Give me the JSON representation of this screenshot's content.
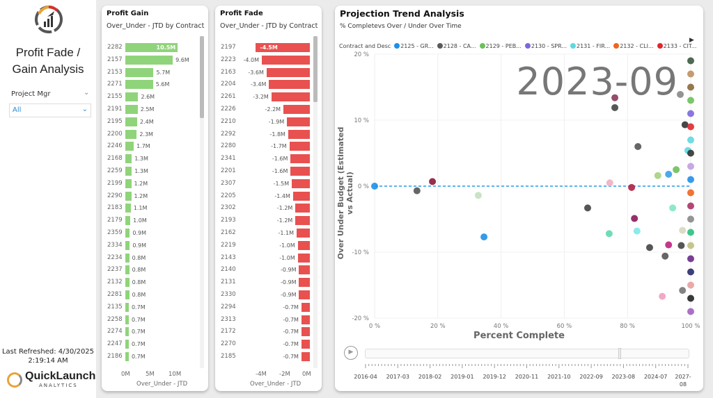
{
  "sidebar": {
    "title_line1": "Profit Fade /",
    "title_line2": "Gain Analysis",
    "filter_label": "Project Mgr",
    "filter_value": "All",
    "refreshed_line1": "Last Refreshed: 4/30/2025",
    "refreshed_line2": "2:19:14 AM",
    "brand_name": "QuickLaunch",
    "brand_sub": "ANALYTICS"
  },
  "gain": {
    "title": "Profit Gain",
    "subtitle": "Over_Under - JTD by Contract",
    "xlabel": "Over_Under - JTD",
    "ticks": [
      "0M",
      "5M",
      "10M"
    ],
    "color": "#8fd47a",
    "rows": [
      [
        "2282",
        10.5,
        "10.5M"
      ],
      [
        "2157",
        9.6,
        "9.6M"
      ],
      [
        "2153",
        5.7,
        "5.7M"
      ],
      [
        "2271",
        5.6,
        "5.6M"
      ],
      [
        "2155",
        2.6,
        "2.6M"
      ],
      [
        "2191",
        2.5,
        "2.5M"
      ],
      [
        "2195",
        2.4,
        "2.4M"
      ],
      [
        "2200",
        2.3,
        "2.3M"
      ],
      [
        "2246",
        1.7,
        "1.7M"
      ],
      [
        "2168",
        1.3,
        "1.3M"
      ],
      [
        "2259",
        1.3,
        "1.3M"
      ],
      [
        "2199",
        1.2,
        "1.2M"
      ],
      [
        "2290",
        1.2,
        "1.2M"
      ],
      [
        "2183",
        1.1,
        "1.1M"
      ],
      [
        "2179",
        1.0,
        "1.0M"
      ],
      [
        "2359",
        0.9,
        "0.9M"
      ],
      [
        "2334",
        0.9,
        "0.9M"
      ],
      [
        "2234",
        0.8,
        "0.8M"
      ],
      [
        "2237",
        0.8,
        "0.8M"
      ],
      [
        "2132",
        0.8,
        "0.8M"
      ],
      [
        "2281",
        0.8,
        "0.8M"
      ],
      [
        "2135",
        0.7,
        "0.7M"
      ],
      [
        "2258",
        0.7,
        "0.7M"
      ],
      [
        "2274",
        0.7,
        "0.7M"
      ],
      [
        "2247",
        0.7,
        "0.7M"
      ],
      [
        "2186",
        0.7,
        "0.7M"
      ]
    ]
  },
  "fade": {
    "title": "Profit Fade",
    "subtitle": "Over_Under - JTD by Contract",
    "xlabel": "Over_Under - JTD",
    "ticks": [
      "-4M",
      "-2M",
      "0M"
    ],
    "color": "#e8514f",
    "rows": [
      [
        "2197",
        -4.5,
        "-4.5M"
      ],
      [
        "2223",
        -4.0,
        "-4.0M"
      ],
      [
        "2163",
        -3.6,
        "-3.6M"
      ],
      [
        "2204",
        -3.4,
        "-3.4M"
      ],
      [
        "2261",
        -3.2,
        "-3.2M"
      ],
      [
        "2226",
        -2.2,
        "-2.2M"
      ],
      [
        "2210",
        -1.9,
        "-1.9M"
      ],
      [
        "2292",
        -1.8,
        "-1.8M"
      ],
      [
        "2280",
        -1.7,
        "-1.7M"
      ],
      [
        "2341",
        -1.6,
        "-1.6M"
      ],
      [
        "2201",
        -1.6,
        "-1.6M"
      ],
      [
        "2307",
        -1.5,
        "-1.5M"
      ],
      [
        "2205",
        -1.4,
        "-1.4M"
      ],
      [
        "2302",
        -1.2,
        "-1.2M"
      ],
      [
        "2193",
        -1.2,
        "-1.2M"
      ],
      [
        "2162",
        -1.1,
        "-1.1M"
      ],
      [
        "2219",
        -1.0,
        "-1.0M"
      ],
      [
        "2143",
        -1.0,
        "-1.0M"
      ],
      [
        "2140",
        -0.9,
        "-0.9M"
      ],
      [
        "2131",
        -0.9,
        "-0.9M"
      ],
      [
        "2330",
        -0.9,
        "-0.9M"
      ],
      [
        "2294",
        -0.7,
        "-0.7M"
      ],
      [
        "2313",
        -0.7,
        "-0.7M"
      ],
      [
        "2172",
        -0.7,
        "-0.7M"
      ],
      [
        "2270",
        -0.7,
        "-0.7M"
      ],
      [
        "2185",
        -0.7,
        "-0.7M"
      ]
    ]
  },
  "chart_data": {
    "type": "scatter",
    "title": "Projection Trend Analysis",
    "subtitle": "% Completevs Over / Under Over Time",
    "xlabel": "Percent Complete",
    "ylabel": "Over Under Budget (Estimated vs Actual)",
    "xlim": [
      0,
      100
    ],
    "ylim": [
      -20,
      20
    ],
    "xticks": [
      "0 %",
      "20 %",
      "40 %",
      "60 %",
      "80 %",
      "100 %"
    ],
    "yticks": [
      "20 %",
      "10 %",
      "0 %",
      "-10 %",
      "-20 %"
    ],
    "play_label": "2023-09",
    "legend_title": "Contract and Desc",
    "legend": [
      [
        "2125 - GR...",
        "#1e90e8"
      ],
      [
        "2128 - CA...",
        "#5a5a5a"
      ],
      [
        "2129 - PEB...",
        "#6cc05a"
      ],
      [
        "2130 - SPR...",
        "#7b68de"
      ],
      [
        "2131 - FIR...",
        "#5fd8e0"
      ],
      [
        "2132 - CLI...",
        "#f0641e"
      ],
      [
        "2133 - CIT...",
        "#e0282c"
      ]
    ],
    "points": [
      [
        0,
        0,
        "#1e90e8"
      ],
      [
        13.4,
        -0.7,
        "#555"
      ],
      [
        18.3,
        0.7,
        "#8a1a3a"
      ],
      [
        32.8,
        -1.4,
        "#c4e0c0"
      ],
      [
        34.6,
        -7.7,
        "#1e90e8"
      ],
      [
        76,
        13.4,
        "#8a3a5a"
      ],
      [
        76,
        11.9,
        "#444"
      ],
      [
        67.4,
        -3.3,
        "#444"
      ],
      [
        83.3,
        6.0,
        "#555"
      ],
      [
        74.4,
        0.5,
        "#f0b0c0"
      ],
      [
        81.3,
        -0.2,
        "#b02040"
      ],
      [
        74.2,
        -7.2,
        "#5fd8b0"
      ],
      [
        83,
        -6.8,
        "#80e8e8"
      ],
      [
        82.2,
        -4.9,
        "#8a1a5a"
      ],
      [
        87,
        -9.3,
        "#444"
      ],
      [
        91.9,
        -10.6,
        "#555"
      ],
      [
        93,
        -8.9,
        "#c02080"
      ],
      [
        97,
        -9.0,
        "#444"
      ],
      [
        91,
        -16.7,
        "#f0a0c0"
      ],
      [
        89.6,
        1.6,
        "#a8d080"
      ],
      [
        93,
        1.8,
        "#3aa0e8"
      ],
      [
        95.4,
        2.5,
        "#6cc05a"
      ],
      [
        94.3,
        -3.3,
        "#80e8c0"
      ],
      [
        97.4,
        -6.7,
        "#d8d8c0"
      ],
      [
        96.7,
        13.9,
        "#888"
      ],
      [
        98.2,
        9.3,
        "#333"
      ],
      [
        99.1,
        5.4,
        "#5fd8e0"
      ],
      [
        97.4,
        -15.8,
        "#777"
      ],
      [
        100,
        19,
        "#3a5a40"
      ],
      [
        100,
        17,
        "#c09060"
      ],
      [
        100,
        15,
        "#8a6a3a"
      ],
      [
        100,
        13,
        "#6cc05a"
      ],
      [
        100,
        11,
        "#7b68de"
      ],
      [
        100,
        9,
        "#e0282c"
      ],
      [
        100,
        7,
        "#5fd8e0"
      ],
      [
        100,
        5,
        "#333"
      ],
      [
        100,
        3,
        "#c0a0e0"
      ],
      [
        100,
        1,
        "#1e90e8"
      ],
      [
        100,
        -1,
        "#f0641e"
      ],
      [
        100,
        -3,
        "#aa3366"
      ],
      [
        100,
        -5,
        "#888"
      ],
      [
        100,
        -7,
        "#2ac080"
      ],
      [
        100,
        -9,
        "#c0c080"
      ],
      [
        100,
        -11,
        "#6a2a8a"
      ],
      [
        100,
        -13,
        "#2a2a6a"
      ],
      [
        100,
        -15,
        "#e8a0a0"
      ],
      [
        100,
        -17,
        "#222"
      ],
      [
        100,
        -19,
        "#a060c0"
      ]
    ],
    "timeline": {
      "labels": [
        "2016-04",
        "2017-03",
        "2018-02",
        "2019-01",
        "2019-12",
        "2020-11",
        "2021-10",
        "2022-09",
        "2023-08",
        "2024-07",
        "2027-08"
      ],
      "position": 0.78
    }
  }
}
